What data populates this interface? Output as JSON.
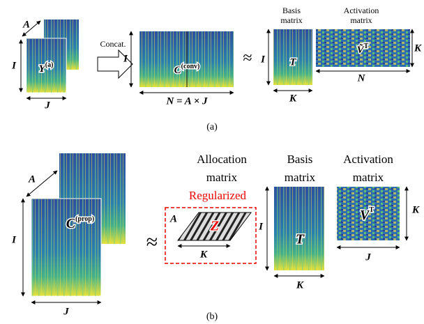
{
  "panel_a": {
    "caption": "(a)",
    "input": {
      "depth": "A",
      "height": "I",
      "width": "J",
      "matrix": {
        "base": "Y",
        "sup": "(a)"
      }
    },
    "operation": "Concat.",
    "concatenated": {
      "height": "I",
      "matrix": {
        "base": "C",
        "sup": "(conv)"
      },
      "width": "N = A × J"
    },
    "approx": "≈",
    "basis": {
      "title_lines": [
        "Basis",
        "matrix"
      ],
      "height": "I",
      "matrix": "T",
      "width": "K"
    },
    "activation": {
      "title_lines": [
        "Activation",
        "matrix"
      ],
      "matrix": {
        "base": "Ṽ",
        "sup": "T"
      },
      "height": "K",
      "width": "N"
    }
  },
  "panel_b": {
    "caption": "(b)",
    "input": {
      "depth": "A",
      "height": "I",
      "width": "J",
      "matrix": {
        "base": "C",
        "sup": "(prop)"
      }
    },
    "approx": "≈",
    "allocation": {
      "title_lines": [
        "Allocation",
        "matrix"
      ],
      "note": "Regularized",
      "depth": "A",
      "matrix": "Z",
      "width": "K"
    },
    "basis": {
      "title_lines": [
        "Basis",
        "matrix"
      ],
      "height": "I",
      "matrix": "T",
      "width": "K"
    },
    "activation": {
      "title_lines": [
        "Activation",
        "matrix"
      ],
      "matrix": {
        "base": "V",
        "sup": "T"
      },
      "height": "K",
      "width": "J"
    }
  }
}
